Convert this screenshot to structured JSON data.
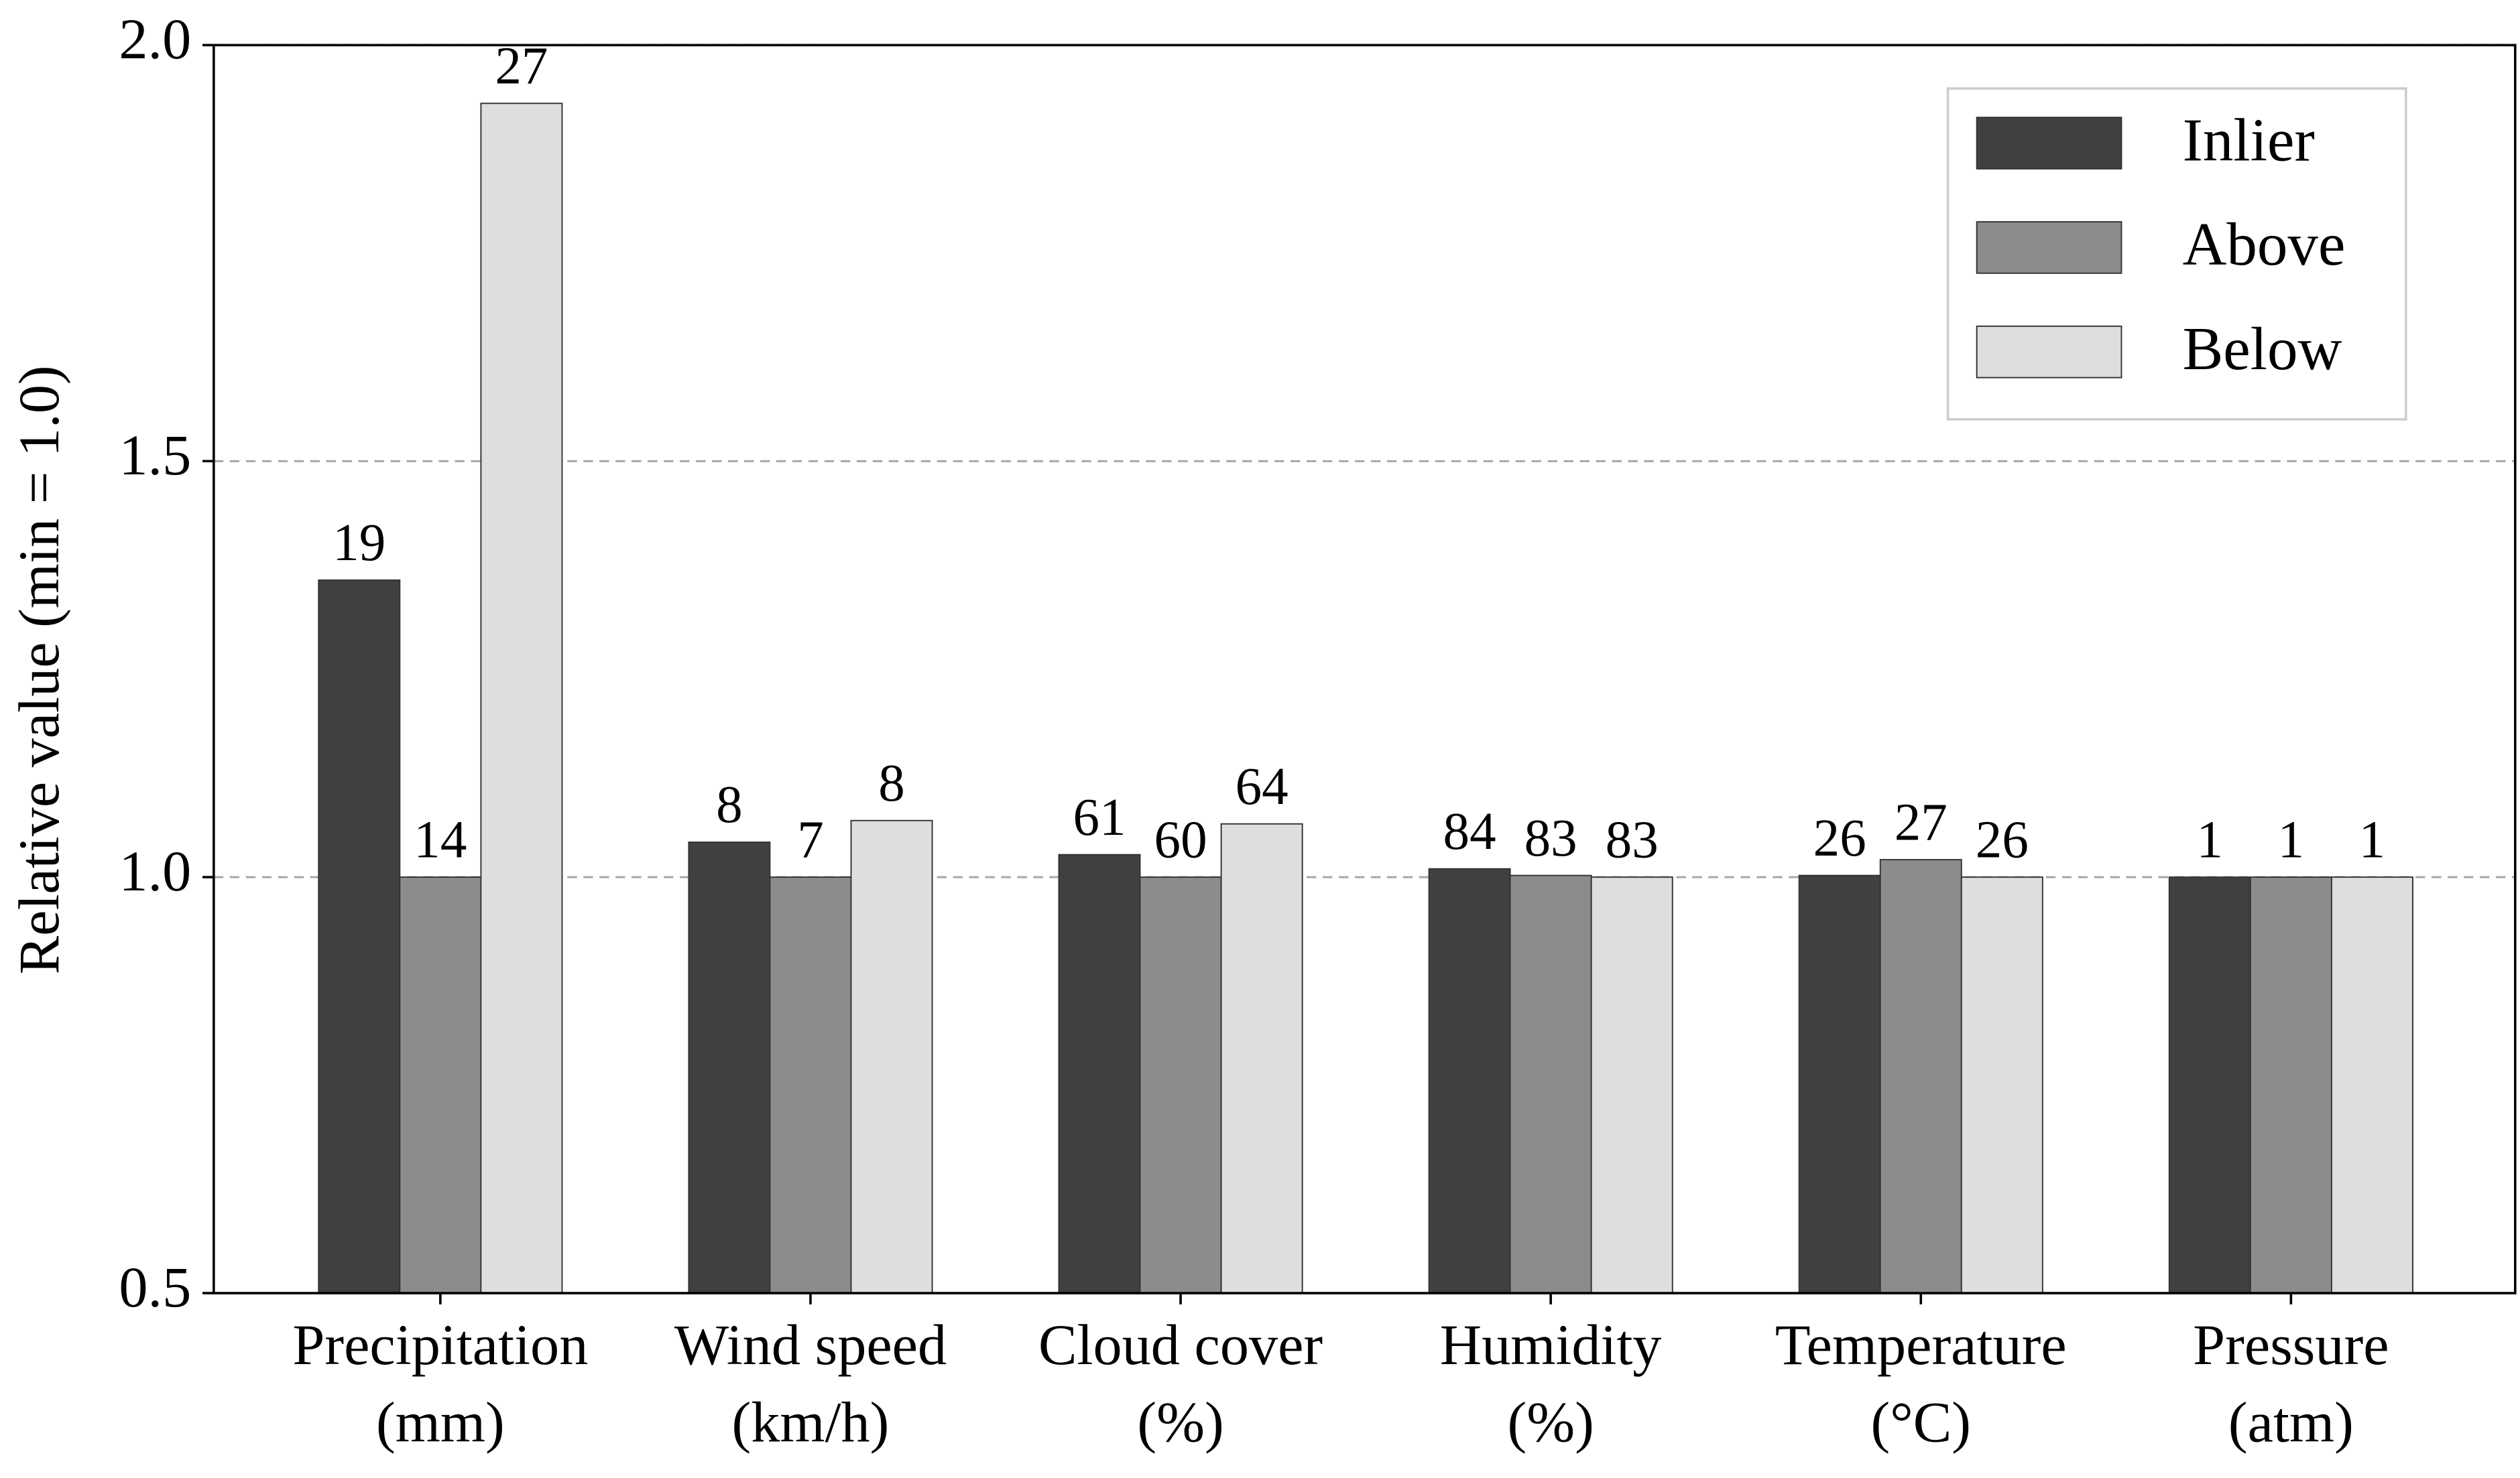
{
  "chart_data": {
    "type": "bar",
    "y_label": "Relative value (min = 1.0)",
    "categories": [
      [
        "Precipitation",
        "(mm)"
      ],
      [
        "Wind speed",
        "(km/h)"
      ],
      [
        "Cloud cover",
        "(%)"
      ],
      [
        "Humidity",
        "(%)"
      ],
      [
        "Temperature",
        "(°C)"
      ],
      [
        "Pressure",
        "(atm)"
      ]
    ],
    "series": [
      {
        "name": "Inlier",
        "color": "#404040",
        "values": [
          1.357,
          1.042,
          1.027,
          1.01,
          1.002,
          1.0
        ],
        "raw_values": [
          19,
          8,
          61,
          84,
          26,
          1
        ]
      },
      {
        "name": "Above",
        "color": "#8c8c8c",
        "values": [
          1.0,
          1.0,
          1.0,
          1.002,
          1.021,
          1.0
        ],
        "raw_values": [
          14,
          7,
          60,
          83,
          27,
          1
        ]
      },
      {
        "name": "Below",
        "color": "#dedede",
        "values": [
          1.93,
          1.068,
          1.064,
          1.0,
          1.0,
          1.0
        ],
        "raw_values": [
          27,
          8,
          64,
          83,
          26,
          1
        ]
      }
    ],
    "ylim": [
      0.5,
      2.0
    ],
    "yticks": [
      0.5,
      {
        "value": 1.0,
        "label": "1.0"
      },
      1.5,
      {
        "value": 2.0,
        "label": "2.0"
      }
    ],
    "grid": true,
    "legend": "upper right"
  }
}
